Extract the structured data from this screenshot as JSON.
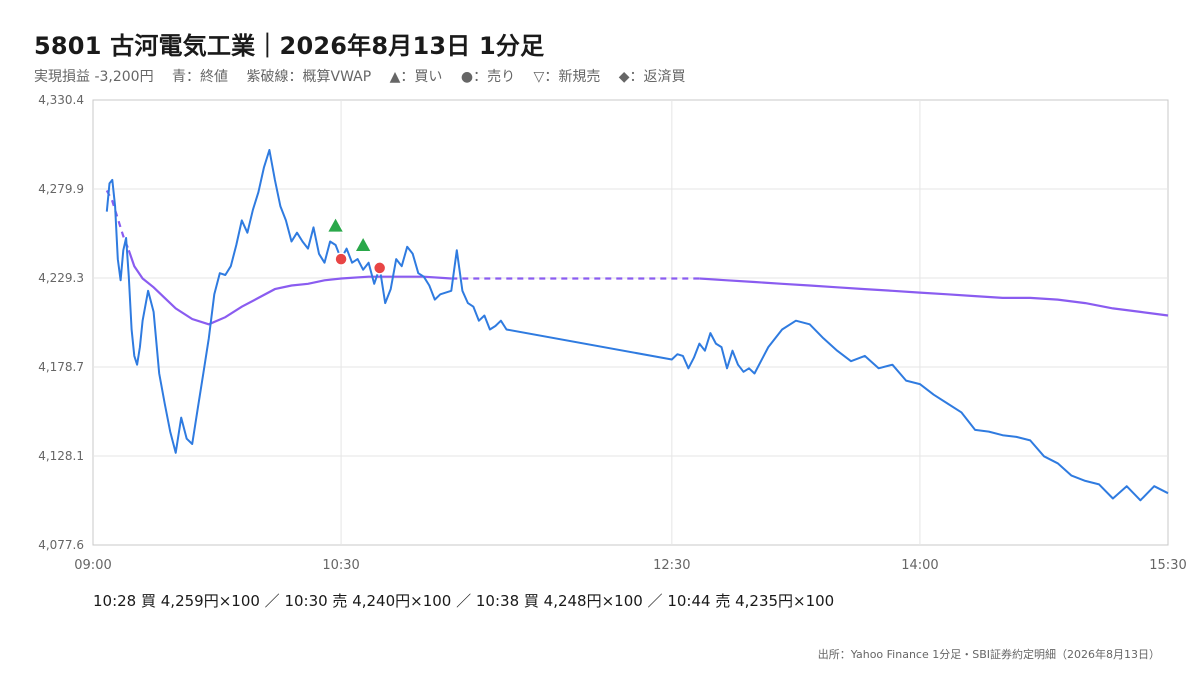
{
  "title": "5801 古河電気工業｜2026年8月13日 1分足",
  "legend": {
    "pnl": "実現損益 -3,200円",
    "close": "青：終値",
    "vwap": "紫破線：概算VWAP",
    "buy": "▲：買い",
    "sell": "●：売り",
    "new_short": "▽：新規売",
    "cover": "◆：返済買"
  },
  "trades_text": "10:28 買 4,259円×100 ／ 10:30 売 4,240円×100 ／ 10:38 買 4,248円×100 ／ 10:44 売 4,235円×100",
  "source": "出所：Yahoo Finance 1分足・SBI証券約定明細（2026年8月13日）",
  "colors": {
    "close": "#2f7be0",
    "vwap": "#8a5cf0",
    "buy": "#2aa84a",
    "sell": "#e84545",
    "grid": "#e6e6e6",
    "axis": "#c8c8c8",
    "tick_text": "#666666"
  },
  "chart_data": {
    "type": "line",
    "x_axis": "time",
    "xlim": [
      "09:00",
      "15:30"
    ],
    "ylim": [
      4077.6,
      4330.4
    ],
    "x_ticks": [
      "09:00",
      "10:30",
      "12:30",
      "14:00",
      "15:30"
    ],
    "y_ticks": [
      "4,077.6",
      "4,128.1",
      "4,178.7",
      "4,229.3",
      "4,279.9",
      "4,330.4"
    ],
    "grid": true,
    "series": [
      {
        "key": "close",
        "x": [
          "09:05",
          "09:06",
          "09:07",
          "09:08",
          "09:09",
          "09:10",
          "09:11",
          "09:12",
          "09:13",
          "09:14",
          "09:15",
          "09:16",
          "09:17",
          "09:18",
          "09:20",
          "09:22",
          "09:24",
          "09:26",
          "09:28",
          "09:30",
          "09:32",
          "09:34",
          "09:36",
          "09:38",
          "09:40",
          "09:42",
          "09:44",
          "09:46",
          "09:48",
          "09:50",
          "09:52",
          "09:54",
          "09:56",
          "09:58",
          "10:00",
          "10:02",
          "10:04",
          "10:06",
          "10:08",
          "10:10",
          "10:12",
          "10:14",
          "10:16",
          "10:18",
          "10:20",
          "10:22",
          "10:24",
          "10:26",
          "10:28",
          "10:30",
          "10:32",
          "10:34",
          "10:36",
          "10:38",
          "10:40",
          "10:42",
          "10:44",
          "10:46",
          "10:48",
          "10:50",
          "10:52",
          "10:54",
          "10:56",
          "10:58",
          "11:00",
          "11:02",
          "11:04",
          "11:06",
          "11:08",
          "11:10",
          "11:12",
          "11:14",
          "11:16",
          "11:18",
          "11:20",
          "11:22",
          "11:24",
          "11:26",
          "11:28",
          "11:30",
          "12:30",
          "12:32",
          "12:34",
          "12:36",
          "12:38",
          "12:40",
          "12:42",
          "12:44",
          "12:46",
          "12:48",
          "12:50",
          "12:52",
          "12:54",
          "12:56",
          "12:58",
          "13:00",
          "13:05",
          "13:10",
          "13:15",
          "13:20",
          "13:25",
          "13:30",
          "13:35",
          "13:40",
          "13:45",
          "13:50",
          "13:55",
          "14:00",
          "14:05",
          "14:10",
          "14:15",
          "14:20",
          "14:25",
          "14:30",
          "14:35",
          "14:40",
          "14:45",
          "14:50",
          "14:55",
          "15:00",
          "15:05",
          "15:10",
          "15:15",
          "15:20",
          "15:25",
          "15:30"
        ],
        "values": [
          4267,
          4283,
          4285,
          4270,
          4240,
          4228,
          4245,
          4252,
          4230,
          4200,
          4185,
          4180,
          4190,
          4205,
          4222,
          4210,
          4175,
          4158,
          4142,
          4130,
          4150,
          4138,
          4135,
          4155,
          4175,
          4195,
          4220,
          4232,
          4231,
          4236,
          4248,
          4262,
          4255,
          4268,
          4278,
          4292,
          4302,
          4285,
          4270,
          4262,
          4250,
          4255,
          4250,
          4246,
          4258,
          4243,
          4238,
          4250,
          4248,
          4240,
          4246,
          4238,
          4240,
          4234,
          4238,
          4226,
          4235,
          4215,
          4223,
          4240,
          4236,
          4247,
          4243,
          4232,
          4230,
          4225,
          4217,
          4220,
          4221,
          4222,
          4245,
          4222,
          4215,
          4213,
          4205,
          4208,
          4200,
          4202,
          4205,
          4200,
          4183,
          4186,
          4185,
          4178,
          4184,
          4192,
          4188,
          4198,
          4192,
          4190,
          4178,
          4188,
          4180,
          4176,
          4178,
          4175,
          4190,
          4200,
          4205,
          4203,
          4195,
          4188,
          4182,
          4185,
          4178,
          4180,
          4171,
          4169,
          4163,
          4158,
          4153,
          4143,
          4142,
          4140,
          4139,
          4137,
          4128,
          4124,
          4117,
          4114,
          4112,
          4104,
          4111,
          4103,
          4111,
          4107
        ],
        "gap_after": "11:30"
      },
      {
        "key": "vwap",
        "x": [
          "09:05",
          "09:07",
          "09:09",
          "09:11",
          "09:13",
          "09:15",
          "09:18",
          "09:22",
          "09:26",
          "09:30",
          "09:36",
          "09:42",
          "09:48",
          "09:54",
          "10:00",
          "10:06",
          "10:12",
          "10:18",
          "10:24",
          "10:30",
          "10:40",
          "10:50",
          "11:00",
          "11:10",
          "11:20",
          "11:30",
          "12:30",
          "12:40",
          "12:50",
          "13:00",
          "13:10",
          "13:20",
          "13:30",
          "13:40",
          "13:50",
          "14:00",
          "14:10",
          "14:20",
          "14:30",
          "14:40",
          "14:50",
          "15:00",
          "15:10",
          "15:20",
          "15:30"
        ],
        "values": [
          4279,
          4273,
          4263,
          4253,
          4245,
          4236,
          4229,
          4224,
          4218,
          4212,
          4206,
          4203,
          4207,
          4213,
          4218,
          4223,
          4225,
          4226,
          4228,
          4229,
          4230,
          4230,
          4230,
          4229,
          4229,
          4229,
          4229,
          4229,
          4228,
          4227,
          4226,
          4225,
          4224,
          4223,
          4222,
          4221,
          4220,
          4219,
          4218,
          4218,
          4217,
          4215,
          4212,
          4210,
          4208
        ],
        "dashed_segment": [
          "09:05",
          "09:13"
        ]
      }
    ],
    "markers": [
      {
        "time": "10:28",
        "price": 4259,
        "side": "buy"
      },
      {
        "time": "10:30",
        "price": 4240,
        "side": "sell"
      },
      {
        "time": "10:38",
        "price": 4248,
        "side": "buy"
      },
      {
        "time": "10:44",
        "price": 4235,
        "side": "sell"
      }
    ]
  }
}
